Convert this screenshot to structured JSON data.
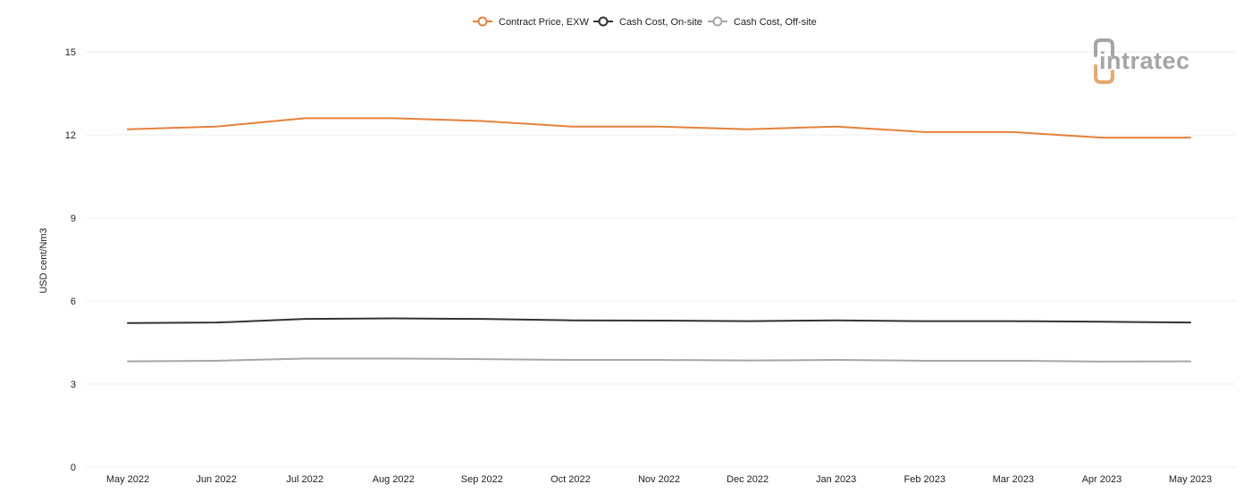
{
  "brand": {
    "name": "intratec",
    "accent_color": "#e8a86c",
    "text_color": "#a5a5a5"
  },
  "chart_data": {
    "type": "line",
    "title": "",
    "xlabel": "",
    "ylabel": "USD cent/Nm3",
    "ylim": [
      0,
      15
    ],
    "yticks": [
      0,
      3,
      6,
      9,
      12,
      15
    ],
    "grid": true,
    "legend_position": "top-center",
    "categories": [
      "May 2022",
      "Jun 2022",
      "Jul 2022",
      "Aug 2022",
      "Sep 2022",
      "Oct 2022",
      "Nov 2022",
      "Dec 2022",
      "Jan 2023",
      "Feb 2023",
      "Mar 2023",
      "Apr 2023",
      "May 2023"
    ],
    "series": [
      {
        "name": "Contract Price, EXW",
        "color": "#e6813a",
        "values": [
          12.2,
          12.3,
          12.6,
          12.6,
          12.5,
          12.3,
          12.3,
          12.2,
          12.3,
          12.1,
          12.1,
          11.9,
          11.9
        ]
      },
      {
        "name": "Cash Cost, On-site",
        "color": "#333333",
        "values": [
          5.2,
          5.22,
          5.35,
          5.37,
          5.35,
          5.3,
          5.29,
          5.27,
          5.3,
          5.27,
          5.27,
          5.25,
          5.22
        ]
      },
      {
        "name": "Cash Cost, Off-site",
        "color": "#a6a6a6",
        "values": [
          3.82,
          3.84,
          3.92,
          3.92,
          3.9,
          3.87,
          3.87,
          3.85,
          3.87,
          3.84,
          3.84,
          3.81,
          3.82
        ]
      }
    ]
  }
}
